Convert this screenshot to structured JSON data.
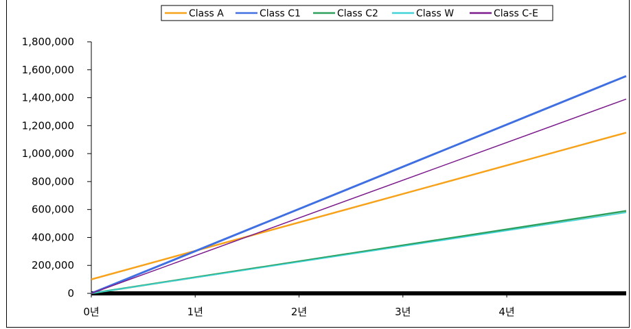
{
  "chart_data": {
    "type": "line",
    "title": "",
    "xlabel": "",
    "ylabel": "",
    "x_ticks": [
      "0년",
      "1년",
      "2년",
      "3년",
      "4년"
    ],
    "xlim": [
      0,
      5.15
    ],
    "ylim": [
      0,
      1800000
    ],
    "y_ticks": [
      "0",
      "200,000",
      "400,000",
      "600,000",
      "800,000",
      "1,000,000",
      "1,200,000",
      "1,400,000",
      "1,600,000",
      "1,800,000"
    ],
    "y_tick_values": [
      0,
      200000,
      400000,
      600000,
      800000,
      1000000,
      1200000,
      1400000,
      1600000,
      1800000
    ],
    "legend_position": "top",
    "grid": false,
    "series": [
      {
        "name": "Class A",
        "color": "#F7A21B",
        "x": [
          0,
          5.15
        ],
        "y": [
          100000,
          1150000
        ]
      },
      {
        "name": "Class C1",
        "color": "#3F6FE0",
        "x": [
          0,
          5.15
        ],
        "y": [
          0,
          1555000
        ]
      },
      {
        "name": "Class C2",
        "color": "#2E9E5B",
        "x": [
          0,
          5.15
        ],
        "y": [
          0,
          590000
        ]
      },
      {
        "name": "Class W",
        "color": "#3FD3D8",
        "x": [
          0,
          5.15
        ],
        "y": [
          0,
          578000
        ]
      },
      {
        "name": "Class C-E",
        "color": "#7B1A8C",
        "x": [
          0,
          5.15
        ],
        "y": [
          0,
          1390000
        ]
      }
    ]
  }
}
